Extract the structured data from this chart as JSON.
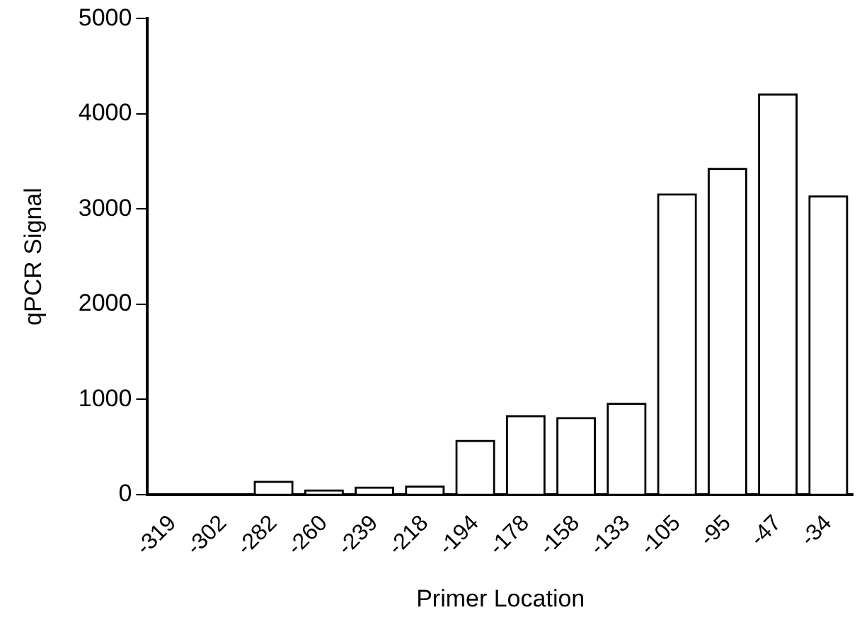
{
  "chart_data": {
    "type": "bar",
    "xlabel": "Primer Location",
    "ylabel": "qPCR Signal",
    "categories": [
      "-319",
      "-302",
      "-282",
      "-260",
      "-239",
      "-218",
      "-194",
      "-178",
      "-158",
      "-133",
      "-105",
      "-95",
      "-47",
      "-34"
    ],
    "values": [
      0,
      0,
      120,
      30,
      60,
      70,
      550,
      810,
      790,
      940,
      3140,
      3410,
      4190,
      3120
    ],
    "color": "#ffffff",
    "ylim": [
      0,
      5000
    ],
    "yticks": [
      0,
      1000,
      2000,
      3000,
      4000,
      5000
    ],
    "grid": false,
    "legend": false
  }
}
